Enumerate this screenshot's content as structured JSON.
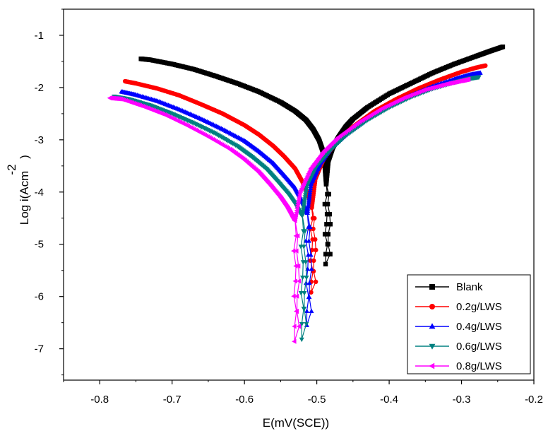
{
  "chart_data": {
    "type": "line",
    "title": "",
    "xlabel": "E(mV(SCE))",
    "ylabel_main": "Log i(Acm",
    "ylabel_sup": "-2",
    "ylabel_close": ")",
    "xlim": [
      -0.85,
      -0.2
    ],
    "ylim": [
      -7.6,
      -0.5
    ],
    "x_ticks": [
      -0.8,
      -0.7,
      -0.6,
      -0.5,
      -0.4,
      -0.3,
      -0.2
    ],
    "x_tick_labels": [
      "-0.8",
      "-0.7",
      "-0.6",
      "-0.5",
      "-0.4",
      "-0.3",
      "-0.2"
    ],
    "y_ticks": [
      -7,
      -6,
      -5,
      -4,
      -3,
      -2,
      -1
    ],
    "y_tick_labels": [
      "-7",
      "-6",
      "-5",
      "-4",
      "-3",
      "-2",
      "-1"
    ],
    "grid": false,
    "legend_position": "bottom-right",
    "series": [
      {
        "name": "Blank",
        "color": "#000000",
        "marker": "square",
        "ecorr": -0.487,
        "ymin": -5.38,
        "anodic": {
          "x": [
            -0.487,
            -0.484,
            -0.478,
            -0.47,
            -0.46,
            -0.45,
            -0.43,
            -0.4,
            -0.37,
            -0.34,
            -0.31,
            -0.28,
            -0.26,
            -0.243
          ],
          "y": [
            -3.85,
            -3.4,
            -3.15,
            -2.95,
            -2.75,
            -2.6,
            -2.38,
            -2.12,
            -1.92,
            -1.72,
            -1.55,
            -1.4,
            -1.3,
            -1.22
          ]
        },
        "cathodic": {
          "x": [
            -0.743,
            -0.73,
            -0.7,
            -0.67,
            -0.64,
            -0.61,
            -0.58,
            -0.55,
            -0.53,
            -0.515,
            -0.505,
            -0.497,
            -0.492,
            -0.489,
            -0.487
          ],
          "y": [
            -1.45,
            -1.47,
            -1.55,
            -1.65,
            -1.78,
            -1.92,
            -2.08,
            -2.28,
            -2.45,
            -2.62,
            -2.8,
            -3.0,
            -3.2,
            -3.5,
            -3.85
          ]
        }
      },
      {
        "name": "0.2g/LWS",
        "color": "#ff0000",
        "marker": "circle",
        "ecorr": -0.507,
        "ymin": -5.92,
        "anodic": {
          "x": [
            -0.507,
            -0.502,
            -0.49,
            -0.47,
            -0.45,
            -0.42,
            -0.39,
            -0.36,
            -0.33,
            -0.3,
            -0.28,
            -0.267
          ],
          "y": [
            -4.3,
            -3.75,
            -3.35,
            -3.0,
            -2.75,
            -2.45,
            -2.22,
            -2.02,
            -1.85,
            -1.7,
            -1.62,
            -1.58
          ]
        },
        "cathodic": {
          "x": [
            -0.765,
            -0.75,
            -0.72,
            -0.69,
            -0.66,
            -0.63,
            -0.6,
            -0.58,
            -0.56,
            -0.545,
            -0.53,
            -0.52,
            -0.512,
            -0.507
          ],
          "y": [
            -1.88,
            -1.92,
            -2.02,
            -2.15,
            -2.32,
            -2.5,
            -2.72,
            -2.9,
            -3.12,
            -3.32,
            -3.55,
            -3.8,
            -4.05,
            -4.3
          ]
        }
      },
      {
        "name": "0.4g/LWS",
        "color": "#0000ff",
        "marker": "triangle-up",
        "ecorr": -0.513,
        "ymin": -6.55,
        "anodic": {
          "x": [
            -0.513,
            -0.508,
            -0.495,
            -0.48,
            -0.46,
            -0.43,
            -0.4,
            -0.37,
            -0.34,
            -0.31,
            -0.29,
            -0.274
          ],
          "y": [
            -4.4,
            -3.85,
            -3.45,
            -3.15,
            -2.9,
            -2.6,
            -2.35,
            -2.15,
            -1.98,
            -1.84,
            -1.76,
            -1.72
          ]
        },
        "cathodic": {
          "x": [
            -0.77,
            -0.75,
            -0.72,
            -0.69,
            -0.66,
            -0.63,
            -0.6,
            -0.58,
            -0.56,
            -0.545,
            -0.53,
            -0.522,
            -0.516,
            -0.513
          ],
          "y": [
            -2.08,
            -2.14,
            -2.26,
            -2.42,
            -2.6,
            -2.8,
            -3.02,
            -3.22,
            -3.45,
            -3.68,
            -3.92,
            -4.12,
            -4.3,
            -4.4
          ]
        }
      },
      {
        "name": "0.6g/LWS",
        "color": "#008080",
        "marker": "triangle-down",
        "ecorr": -0.52,
        "ymin": -6.82,
        "anodic": {
          "x": [
            -0.52,
            -0.514,
            -0.5,
            -0.48,
            -0.46,
            -0.43,
            -0.4,
            -0.37,
            -0.34,
            -0.31,
            -0.29,
            -0.276
          ],
          "y": [
            -4.45,
            -3.9,
            -3.5,
            -3.18,
            -2.92,
            -2.62,
            -2.38,
            -2.18,
            -2.02,
            -1.9,
            -1.83,
            -1.8
          ]
        },
        "cathodic": {
          "x": [
            -0.78,
            -0.76,
            -0.73,
            -0.7,
            -0.67,
            -0.64,
            -0.61,
            -0.59,
            -0.57,
            -0.555,
            -0.54,
            -0.53,
            -0.524,
            -0.52
          ],
          "y": [
            -2.17,
            -2.22,
            -2.34,
            -2.5,
            -2.68,
            -2.88,
            -3.12,
            -3.32,
            -3.55,
            -3.78,
            -4.02,
            -4.22,
            -4.38,
            -4.45
          ]
        }
      },
      {
        "name": "0.8g/LWS",
        "color": "#ff00ff",
        "marker": "triangle-left",
        "ecorr": -0.53,
        "ymin": -6.86,
        "anodic": {
          "x": [
            -0.53,
            -0.523,
            -0.508,
            -0.49,
            -0.47,
            -0.44,
            -0.41,
            -0.38,
            -0.35,
            -0.32,
            -0.3,
            -0.29
          ],
          "y": [
            -4.55,
            -4.0,
            -3.55,
            -3.22,
            -2.95,
            -2.65,
            -2.4,
            -2.2,
            -2.04,
            -1.93,
            -1.87,
            -1.84
          ]
        },
        "cathodic": {
          "x": [
            -0.786,
            -0.77,
            -0.74,
            -0.71,
            -0.68,
            -0.65,
            -0.62,
            -0.6,
            -0.58,
            -0.565,
            -0.55,
            -0.54,
            -0.534,
            -0.53
          ],
          "y": [
            -2.2,
            -2.22,
            -2.36,
            -2.52,
            -2.72,
            -2.94,
            -3.18,
            -3.38,
            -3.62,
            -3.85,
            -4.1,
            -4.3,
            -4.45,
            -4.55
          ]
        }
      }
    ]
  }
}
